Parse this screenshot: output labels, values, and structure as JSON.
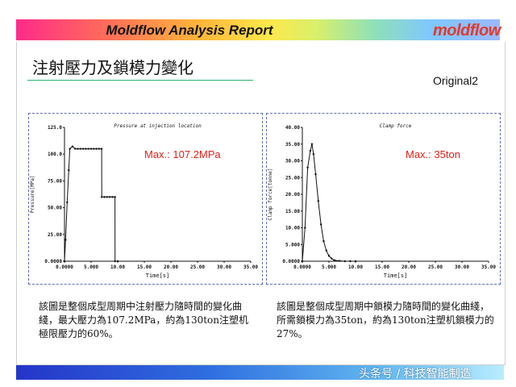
{
  "header": {
    "report_title": "Moldflow Analysis Report",
    "logo_text": "moldflow",
    "colors": {
      "logo": "#e23a2a"
    }
  },
  "slide": {
    "title": "注射壓力及鎖模力變化",
    "label_original": "Original2"
  },
  "charts": [
    {
      "title": "Pressure at injection location",
      "annotation": "Max.: 107.2MPa",
      "ylabel": "Pressure[MPa]",
      "xlabel": "Time[s]"
    },
    {
      "title": "Clamp force",
      "annotation": "Max.: 35ton",
      "ylabel": "Clamp force[tonne]",
      "xlabel": "Time[s]"
    }
  ],
  "captions": {
    "left": "該圖是整個成型周期中注射壓力隨時間的變化曲綫，最大壓力為107.2MPa，約為130ton注塑机極限壓力的60%。",
    "right": "該圖是整個成型周期中鎖模力隨時間的變化曲綫，所需鎖模力為35ton，約為130ton注塑机鎖模力的27%。"
  },
  "footer": {
    "watermark": "头条号 / 科技智能制造"
  },
  "chart_data": [
    {
      "type": "line",
      "title": "Pressure at injection location",
      "xlabel": "Time[s]",
      "ylabel": "Pressure[MPa]",
      "xlim": [
        0,
        35
      ],
      "ylim": [
        0,
        125
      ],
      "x_ticks": [
        "0.0000",
        "5.000",
        "10.00",
        "15.00",
        "20.00",
        "25.00",
        "30.00",
        "35.00"
      ],
      "y_ticks": [
        "0.0000",
        "25.00",
        "50.00",
        "75.00",
        "100.0",
        "125.0"
      ],
      "x_tick_values": [
        0,
        5,
        10,
        15,
        20,
        25,
        30,
        35
      ],
      "y_tick_values": [
        0,
        25,
        50,
        75,
        100,
        125
      ],
      "series": [
        {
          "x": [
            0,
            0.2,
            0.5,
            0.8,
            1.0,
            1.5,
            2.0,
            2.5,
            3.0,
            3.5,
            4.0,
            4.5,
            5.0,
            5.5,
            6.0,
            6.5,
            6.99,
            7.0,
            7.5,
            8.0,
            8.5,
            9.0,
            9.49,
            9.5,
            10.0
          ],
          "y": [
            0,
            20,
            55,
            85,
            105.0,
            107.2,
            105.0,
            105.0,
            105.0,
            105.0,
            105.0,
            105.0,
            105.0,
            105.0,
            105.0,
            105.0,
            105.0,
            60.0,
            60.0,
            60.0,
            60.0,
            60.0,
            60.0,
            0,
            0
          ]
        }
      ],
      "grid": false,
      "annotation": "Max.: 107.2MPa",
      "color": "#e0201a"
    },
    {
      "type": "line",
      "title": "Clamp force",
      "xlabel": "Time[s]",
      "ylabel": "Clamp force[tonne]",
      "xlim": [
        0,
        35
      ],
      "ylim": [
        0,
        40
      ],
      "x_ticks": [
        "0.0000",
        "5.000",
        "10.00",
        "15.00",
        "20.00",
        "25.00",
        "30.00",
        "35.00"
      ],
      "y_ticks": [
        "0.0000",
        "5.000",
        "10.00",
        "15.00",
        "20.00",
        "25.00",
        "30.00",
        "35.00",
        "40.00"
      ],
      "x_tick_values": [
        0,
        5,
        10,
        15,
        20,
        25,
        30,
        35
      ],
      "y_tick_values": [
        0,
        5,
        10,
        15,
        20,
        25,
        30,
        35,
        40
      ],
      "series": [
        {
          "x": [
            0,
            0.5,
            1.0,
            1.5,
            1.8,
            2.1,
            2.5,
            3.0,
            3.5,
            4.0,
            4.5,
            5.0,
            5.5,
            6.0,
            7.0,
            8.0,
            9.0,
            10.0
          ],
          "y": [
            0,
            10,
            28,
            33,
            35.0,
            32,
            26,
            18,
            11,
            6,
            3.2,
            1.6,
            0.8,
            0.3,
            0.1,
            0,
            0,
            0
          ]
        }
      ],
      "grid": false,
      "annotation": "Max.: 35ton",
      "color": "#e0201a"
    }
  ]
}
